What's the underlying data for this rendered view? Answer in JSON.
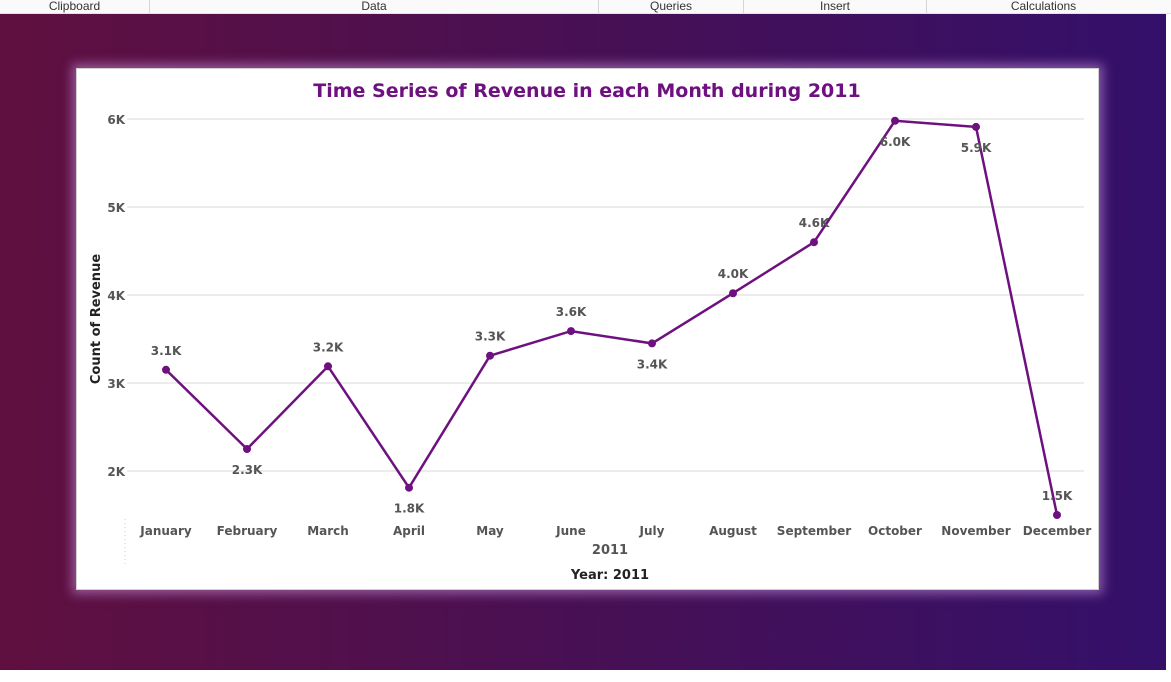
{
  "ribbon": {
    "groups": [
      "Clipboard",
      "Data",
      "Queries",
      "Insert",
      "Calculations"
    ]
  },
  "colors": {
    "line": "#6e1080",
    "title": "#6e1080",
    "canvas_left": "#601040",
    "canvas_right": "#34106a"
  },
  "chart_data": {
    "type": "line",
    "title": "Time Series of Revenue in each Month during 2011",
    "xlabel": "Year: 2011",
    "x_sublabel": "2011",
    "ylabel": "Count of Revenue",
    "categories": [
      "January",
      "February",
      "March",
      "April",
      "May",
      "June",
      "July",
      "August",
      "September",
      "October",
      "November",
      "December"
    ],
    "values": [
      3150,
      2250,
      3190,
      1810,
      3310,
      3590,
      3450,
      4020,
      4600,
      5980,
      5910,
      1500
    ],
    "data_labels": [
      "3.1K",
      "2.3K",
      "3.2K",
      "1.8K",
      "3.3K",
      "3.6K",
      "3.4K",
      "4.0K",
      "4.6K",
      "6.0K",
      "5.9K",
      "1.5K"
    ],
    "label_positions": [
      "above",
      "below",
      "above",
      "below",
      "above",
      "above",
      "below",
      "above",
      "above",
      "below",
      "below",
      "above"
    ],
    "yticks": [
      2000,
      3000,
      4000,
      5000,
      6000
    ],
    "ytick_labels": [
      "2K",
      "3K",
      "4K",
      "5K",
      "6K"
    ],
    "ylim": [
      1500,
      6000
    ],
    "grid": true,
    "legend": "none"
  }
}
